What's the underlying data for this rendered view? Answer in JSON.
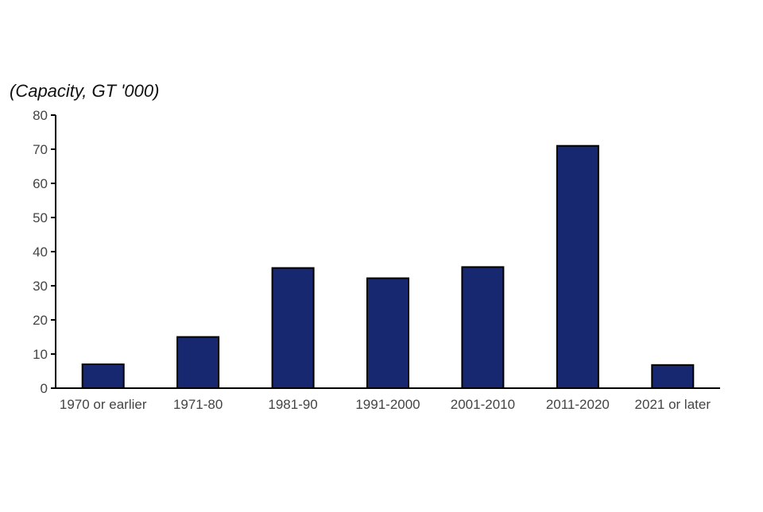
{
  "chart_data": {
    "type": "bar",
    "title": "",
    "xlabel": "",
    "ylabel": "(Capacity, GT '000)",
    "categories": [
      "1970 or earlier",
      "1971-80",
      "1981-90",
      "1991-2000",
      "2001-2010",
      "2011-2020",
      "2021 or later"
    ],
    "values": [
      7,
      15,
      35.2,
      32.2,
      35.5,
      71,
      6.8
    ],
    "ylim": [
      0,
      80
    ],
    "yticks": [
      0,
      10,
      20,
      30,
      40,
      50,
      60,
      70,
      80
    ],
    "ytick_labels": [
      "0",
      "10",
      "20",
      "30",
      "40",
      "50",
      "60",
      "70",
      "80"
    ],
    "grid": false,
    "legend": "none",
    "colors": {
      "bar_fill": "#172870",
      "bar_stroke": "#000000",
      "axis": "#000000",
      "tick_text": "#444444"
    }
  }
}
